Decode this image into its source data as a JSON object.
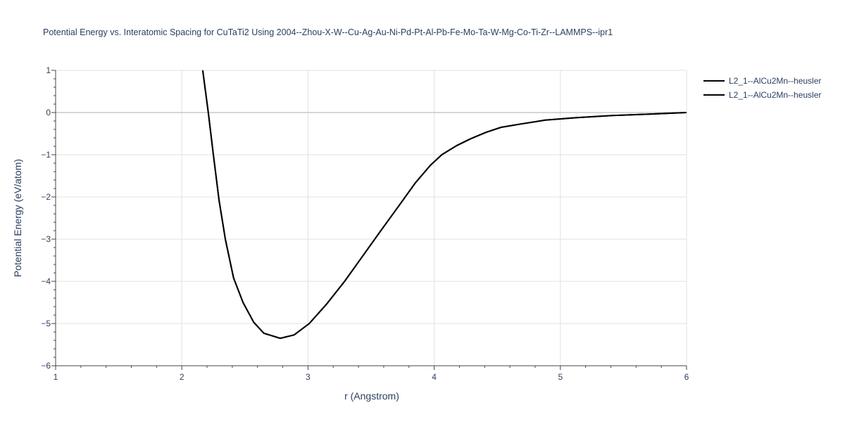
{
  "chart_data": {
    "type": "line",
    "title": "Potential Energy vs. Interatomic Spacing for CuTaTi2 Using 2004--Zhou-X-W--Cu-Ag-Au-Ni-Pd-Pt-Al-Pb-Fe-Mo-Ta-W-Mg-Co-Ti-Zr--LAMMPS--ipr1",
    "xlabel": "r (Angstrom)",
    "ylabel": "Potential Energy (eV/atom)",
    "xlim": [
      1,
      6
    ],
    "ylim": [
      -6,
      1
    ],
    "xticks": [
      1,
      2,
      3,
      4,
      5,
      6
    ],
    "yticks": [
      1,
      0,
      -1,
      -2,
      -3,
      -4,
      -5,
      -6
    ],
    "xtick_labels": [
      "1",
      "2",
      "3",
      "4",
      "5",
      "6"
    ],
    "ytick_labels": [
      "1",
      "0",
      "−1",
      "−2",
      "−3",
      "−4",
      "−5",
      "−6"
    ],
    "grid": true,
    "legend_position": "top-right",
    "line_color": "#000000",
    "series": [
      {
        "name": "L2_1--AlCu2Mn--heusler",
        "x": [
          2.166,
          2.21,
          2.25,
          2.295,
          2.345,
          2.41,
          2.485,
          2.57,
          2.65,
          2.78,
          2.89,
          3.01,
          3.15,
          3.29,
          3.57,
          3.73,
          3.85,
          3.97,
          4.06,
          4.18,
          4.29,
          4.41,
          4.53,
          4.69,
          4.88,
          5.13,
          5.41,
          5.69,
          6.0
        ],
        "y": [
          1,
          0,
          -1,
          -2.08,
          -3,
          -3.92,
          -4.5,
          -4.97,
          -5.23,
          -5.35,
          -5.27,
          -5.0,
          -4.53,
          -4.0,
          -2.83,
          -2.17,
          -1.67,
          -1.25,
          -1.0,
          -0.78,
          -0.62,
          -0.47,
          -0.35,
          -0.27,
          -0.18,
          -0.12,
          -0.07,
          -0.04,
          0
        ]
      },
      {
        "name": "L2_1--AlCu2Mn--heusler",
        "x": [
          2.166,
          2.21,
          2.25,
          2.295,
          2.345,
          2.41,
          2.485,
          2.57,
          2.65,
          2.78,
          2.89,
          3.01,
          3.15,
          3.29,
          3.57,
          3.73,
          3.85,
          3.97,
          4.06,
          4.18,
          4.29,
          4.41,
          4.53,
          4.69,
          4.88,
          5.13,
          5.41,
          5.69,
          6.0
        ],
        "y": [
          1,
          0,
          -1,
          -2.08,
          -3,
          -3.92,
          -4.5,
          -4.97,
          -5.23,
          -5.35,
          -5.27,
          -5.0,
          -4.53,
          -4.0,
          -2.83,
          -2.17,
          -1.67,
          -1.25,
          -1.0,
          -0.78,
          -0.62,
          -0.47,
          -0.35,
          -0.27,
          -0.18,
          -0.12,
          -0.07,
          -0.04,
          0
        ]
      }
    ]
  }
}
